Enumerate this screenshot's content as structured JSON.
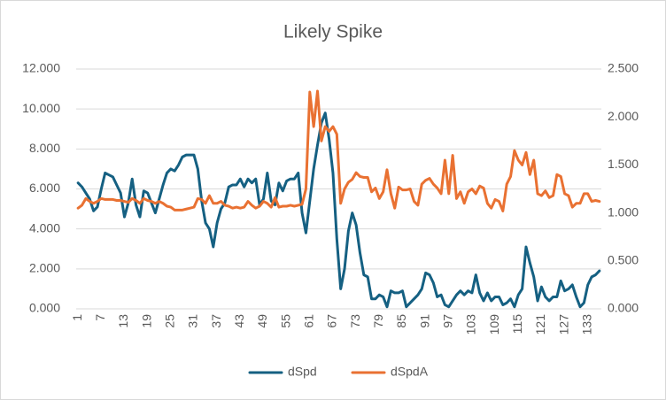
{
  "chart_data": {
    "type": "line",
    "title": "Likely Spike",
    "categories": [
      1,
      null,
      null,
      null,
      null,
      null,
      7,
      null,
      null,
      null,
      null,
      null,
      13,
      null,
      null,
      null,
      null,
      null,
      19,
      null,
      null,
      null,
      null,
      null,
      25,
      null,
      null,
      null,
      null,
      null,
      31,
      null,
      null,
      null,
      null,
      null,
      37,
      null,
      null,
      null,
      null,
      null,
      43,
      null,
      null,
      null,
      null,
      null,
      49,
      null,
      null,
      null,
      null,
      null,
      55,
      null,
      null,
      null,
      null,
      null,
      61,
      null,
      null,
      null,
      null,
      null,
      67,
      null,
      null,
      null,
      null,
      null,
      73,
      null,
      null,
      null,
      null,
      null,
      79,
      null,
      null,
      null,
      null,
      null,
      85,
      null,
      null,
      null,
      null,
      null,
      91,
      null,
      null,
      null,
      null,
      null,
      97,
      null,
      null,
      null,
      null,
      null,
      103,
      null,
      null,
      null,
      null,
      null,
      109,
      null,
      null,
      null,
      null,
      null,
      115,
      null,
      null,
      null,
      null,
      null,
      121,
      null,
      null,
      null,
      null,
      null,
      127,
      null,
      null,
      null,
      null,
      null,
      133,
      null,
      null,
      null
    ],
    "series": [
      {
        "name": "dSpd",
        "color": "#156082",
        "values": [
          6.3,
          6.1,
          5.8,
          5.5,
          4.9,
          5.1,
          6.0,
          6.8,
          6.7,
          6.6,
          6.2,
          5.8,
          4.6,
          5.3,
          6.5,
          5.2,
          4.6,
          5.9,
          5.8,
          5.3,
          4.8,
          5.5,
          6.2,
          6.8,
          7.0,
          6.9,
          7.2,
          7.6,
          7.7,
          7.7,
          7.7,
          7.0,
          5.4,
          4.3,
          4.0,
          3.1,
          4.3,
          5.0,
          5.3,
          6.1,
          6.2,
          6.2,
          6.5,
          6.1,
          6.5,
          6.3,
          6.5,
          5.2,
          5.5,
          6.8,
          5.4,
          5.2,
          6.3,
          5.9,
          6.4,
          6.5,
          6.5,
          6.8,
          4.8,
          3.8,
          5.4,
          7.0,
          8.2,
          9.3,
          9.8,
          8.5,
          6.8,
          3.5,
          1.0,
          2.0,
          3.9,
          4.8,
          4.2,
          2.8,
          1.7,
          1.6,
          0.5,
          0.5,
          0.7,
          0.6,
          0.1,
          0.9,
          0.8,
          0.8,
          0.9,
          0.1,
          0.3,
          0.5,
          0.7,
          1.0,
          1.8,
          1.7,
          1.3,
          0.6,
          0.7,
          0.2,
          0.1,
          0.4,
          0.7,
          0.9,
          0.7,
          0.9,
          0.8,
          1.7,
          0.8,
          0.4,
          0.8,
          0.4,
          0.6,
          0.6,
          0.2,
          0.3,
          0.5,
          0.1,
          0.7,
          1.0,
          3.1,
          2.3,
          1.6,
          0.4,
          1.1,
          0.6,
          0.4,
          0.6,
          0.6,
          1.4,
          0.9,
          1.0,
          1.2,
          0.6,
          0.1,
          0.3,
          1.2,
          1.6,
          1.7,
          1.9
        ]
      },
      {
        "name": "dSpdA",
        "color": "#E97132",
        "axis": "y2",
        "values": [
          1.05,
          1.08,
          1.15,
          1.12,
          1.1,
          1.12,
          1.15,
          1.14,
          1.14,
          1.14,
          1.13,
          1.13,
          1.12,
          1.11,
          1.15,
          1.13,
          1.1,
          1.15,
          1.13,
          1.12,
          1.1,
          1.12,
          1.1,
          1.07,
          1.06,
          1.03,
          1.03,
          1.03,
          1.04,
          1.05,
          1.06,
          1.15,
          1.14,
          1.1,
          1.18,
          1.1,
          1.1,
          1.12,
          1.08,
          1.07,
          1.05,
          1.06,
          1.05,
          1.06,
          1.12,
          1.08,
          1.05,
          1.07,
          1.12,
          1.1,
          1.06,
          1.16,
          1.06,
          1.07,
          1.07,
          1.08,
          1.07,
          1.08,
          1.09,
          1.25,
          2.26,
          1.9,
          2.27,
          1.75,
          1.9,
          1.85,
          1.9,
          1.82,
          1.1,
          1.25,
          1.32,
          1.35,
          1.42,
          1.38,
          1.37,
          1.37,
          1.22,
          1.26,
          1.15,
          1.22,
          1.45,
          1.2,
          1.05,
          1.27,
          1.24,
          1.24,
          1.25,
          1.12,
          1.08,
          1.3,
          1.34,
          1.36,
          1.3,
          1.26,
          1.2,
          1.55,
          1.2,
          1.6,
          1.15,
          1.22,
          1.1,
          1.22,
          1.25,
          1.2,
          1.28,
          1.26,
          1.1,
          1.05,
          1.14,
          1.12,
          1.02,
          1.3,
          1.38,
          1.65,
          1.55,
          1.5,
          1.63,
          1.4,
          1.55,
          1.2,
          1.18,
          1.23,
          1.16,
          1.18,
          1.4,
          1.38,
          1.2,
          1.18,
          1.06,
          1.1,
          1.1,
          1.2,
          1.2,
          1.12,
          1.13,
          1.12
        ]
      }
    ],
    "ylim": [
      0,
      12
    ],
    "yticks": [
      {
        "value": 0,
        "label": "0.000"
      },
      {
        "value": 2,
        "label": "2.000"
      },
      {
        "value": 4,
        "label": "4.000"
      },
      {
        "value": 6,
        "label": "6.000"
      },
      {
        "value": 8,
        "label": "8.000"
      },
      {
        "value": 10,
        "label": "10.000"
      },
      {
        "value": 12,
        "label": "12.000"
      }
    ],
    "y2lim": [
      0,
      2.5
    ],
    "y2ticks": [
      {
        "value": 0,
        "label": "0.000"
      },
      {
        "value": 0.5,
        "label": "0.500"
      },
      {
        "value": 1,
        "label": "1.000"
      },
      {
        "value": 1.5,
        "label": "1.500"
      },
      {
        "value": 2,
        "label": "2.000"
      },
      {
        "value": 2.5,
        "label": "2.500"
      }
    ],
    "grid": true,
    "legend": "bottom"
  }
}
